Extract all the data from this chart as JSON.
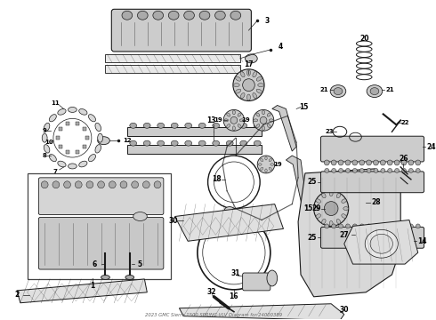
{
  "title": "2023 GMC Sierra 1500 SPRING-VLV Diagram for 24000389",
  "bg": "#ffffff",
  "lc": "#1a1a1a",
  "fig_w": 4.9,
  "fig_h": 3.6,
  "dpi": 100
}
